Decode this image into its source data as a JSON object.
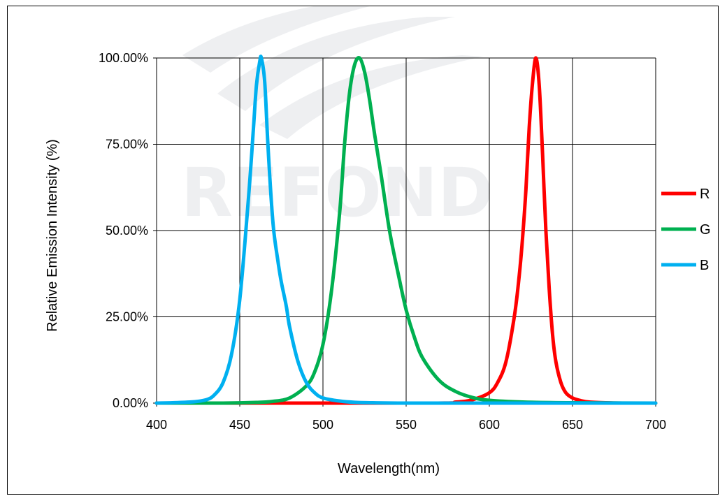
{
  "watermark": {
    "brand_text": "REFOND"
  },
  "chart_data": {
    "type": "line",
    "title": "",
    "xlabel": "Wavelength(nm)",
    "ylabel": "Relative Emission Intensity (%)",
    "xlim": [
      400,
      700
    ],
    "ylim": [
      0,
      1
    ],
    "x_ticks": [
      "400",
      "450",
      "500",
      "550",
      "600",
      "650",
      "700"
    ],
    "y_ticks": [
      "0.00%",
      "25.00%",
      "50.00%",
      "75.00%",
      "100.00%"
    ],
    "grid": true,
    "legend_position": "right",
    "series": [
      {
        "name": "R",
        "color": "#ff0000",
        "x": [
          400,
          560,
          580,
          590,
          600,
          605,
          610,
          615,
          618,
          620,
          622,
          624,
          626,
          628,
          630,
          632,
          634,
          636,
          638,
          640,
          643,
          646,
          650,
          655,
          660,
          670,
          680,
          700
        ],
        "y": [
          0,
          0,
          0.003,
          0.01,
          0.03,
          0.06,
          0.12,
          0.25,
          0.37,
          0.48,
          0.62,
          0.8,
          0.93,
          1.0,
          0.92,
          0.72,
          0.5,
          0.33,
          0.2,
          0.12,
          0.06,
          0.03,
          0.015,
          0.007,
          0.003,
          0.001,
          0,
          0
        ]
      },
      {
        "name": "G",
        "color": "#00b050",
        "x": [
          400,
          440,
          460,
          470,
          480,
          490,
          495,
          500,
          505,
          510,
          513,
          516,
          519,
          522,
          525,
          528,
          531,
          535,
          540,
          545,
          550,
          555,
          560,
          570,
          580,
          590,
          600,
          620,
          650,
          700
        ],
        "y": [
          0,
          0,
          0.002,
          0.005,
          0.015,
          0.05,
          0.09,
          0.17,
          0.32,
          0.55,
          0.75,
          0.9,
          0.98,
          1.0,
          0.96,
          0.88,
          0.78,
          0.66,
          0.5,
          0.38,
          0.27,
          0.19,
          0.13,
          0.065,
          0.033,
          0.016,
          0.008,
          0.003,
          0.001,
          0
        ]
      },
      {
        "name": "B",
        "color": "#00b0f0",
        "x": [
          400,
          420,
          430,
          435,
          440,
          445,
          450,
          455,
          458,
          460,
          462,
          463,
          465,
          467,
          470,
          473,
          475,
          478,
          480,
          485,
          490,
          495,
          500,
          510,
          520,
          530,
          550,
          600,
          700
        ],
        "y": [
          0,
          0.003,
          0.01,
          0.025,
          0.06,
          0.14,
          0.3,
          0.58,
          0.78,
          0.92,
          0.99,
          1.0,
          0.93,
          0.74,
          0.52,
          0.41,
          0.35,
          0.28,
          0.22,
          0.12,
          0.06,
          0.03,
          0.015,
          0.006,
          0.002,
          0.001,
          0,
          0,
          0
        ]
      }
    ]
  }
}
